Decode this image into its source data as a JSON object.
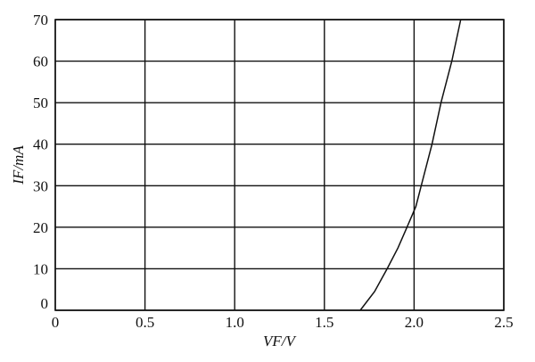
{
  "chart_data": {
    "type": "line",
    "title": "",
    "xlabel": "VF/V",
    "ylabel": "IF/mA",
    "xlim": [
      0,
      2.5
    ],
    "ylim": [
      0,
      70
    ],
    "xticks": [
      "0",
      "0.5",
      "1.0",
      "1.5",
      "2.0",
      "2.5"
    ],
    "yticks": [
      "0",
      "10",
      "20",
      "30",
      "40",
      "50",
      "60",
      "70"
    ],
    "grid": true,
    "series": [
      {
        "x": [
          1.7,
          1.78,
          1.85,
          1.91,
          1.96,
          2.01,
          2.04,
          2.1,
          2.15,
          2.21,
          2.26
        ],
        "y": [
          0,
          4.5,
          10,
          15,
          20,
          25,
          30,
          40,
          50,
          60,
          70
        ],
        "color": "#111111"
      }
    ]
  }
}
